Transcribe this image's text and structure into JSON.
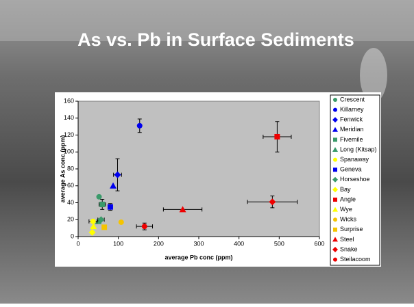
{
  "title": "As vs. Pb in Surface Sediments",
  "chart_data": {
    "type": "scatter",
    "x_label": "average Pb conc (ppm)",
    "y_label": "average As conc (ppm)",
    "xlim": [
      0,
      600
    ],
    "xticks": [
      0,
      100,
      200,
      300,
      400,
      500,
      600
    ],
    "ylim": [
      0,
      160
    ],
    "yticks": [
      0,
      20,
      40,
      60,
      80,
      100,
      120,
      140,
      160
    ],
    "plot_background": "#c0c0c0",
    "series": [
      {
        "name": "Crescent",
        "color": "#3a9a6a",
        "marker": "circle",
        "x": [
          52
        ],
        "values": [
          47
        ]
      },
      {
        "name": "Killarney",
        "color": "#0000ee",
        "marker": "circle",
        "x": [
          153
        ],
        "values": [
          131
        ],
        "yerr": [
          8
        ]
      },
      {
        "name": "Fenwick",
        "color": "#0000ee",
        "marker": "diamond",
        "x": [
          98
        ],
        "values": [
          73
        ],
        "xerr": [
          10
        ],
        "yerr": [
          19
        ]
      },
      {
        "name": "Meridian",
        "color": "#0000ee",
        "marker": "triangle",
        "x": [
          87
        ],
        "values": [
          60
        ]
      },
      {
        "name": "Fivemile",
        "color": "#3a9a6a",
        "marker": "square",
        "x": [
          60
        ],
        "values": [
          38
        ],
        "xerr": [
          8
        ],
        "yerr": [
          6
        ]
      },
      {
        "name": "Long (Kitsap)",
        "color": "#3a9a6a",
        "marker": "triangle",
        "x": [
          50
        ],
        "values": [
          18
        ]
      },
      {
        "name": "Spanaway",
        "color": "#ffff00",
        "marker": "circle",
        "x": [
          37
        ],
        "values": [
          18
        ],
        "xerr": [
          10
        ]
      },
      {
        "name": "Geneva",
        "color": "#0000ee",
        "marker": "square",
        "x": [
          80
        ],
        "values": [
          35
        ],
        "yerr": [
          4
        ]
      },
      {
        "name": "Horseshoe",
        "color": "#3a9a6a",
        "marker": "diamond",
        "x": [
          57
        ],
        "values": [
          20
        ],
        "xerr": [
          8
        ]
      },
      {
        "name": "Bay",
        "color": "#ffff00",
        "marker": "diamond",
        "x": [
          35
        ],
        "values": [
          5
        ]
      },
      {
        "name": "Angle",
        "color": "#ee0000",
        "marker": "square",
        "x": [
          495
        ],
        "values": [
          118
        ],
        "xerr": [
          35
        ],
        "yerr": [
          18
        ]
      },
      {
        "name": "Wye",
        "color": "#ffff00",
        "marker": "triangle",
        "x": [
          38
        ],
        "values": [
          12
        ]
      },
      {
        "name": "Wicks",
        "color": "#f5c400",
        "marker": "circle",
        "x": [
          107
        ],
        "values": [
          17
        ]
      },
      {
        "name": "Surprise",
        "color": "#f5c400",
        "marker": "square",
        "x": [
          65
        ],
        "values": [
          11
        ]
      },
      {
        "name": "Steel",
        "color": "#ee0000",
        "marker": "triangle",
        "x": [
          260
        ],
        "values": [
          32
        ],
        "xerr": [
          48
        ]
      },
      {
        "name": "Snake",
        "color": "#ee0000",
        "marker": "diamond",
        "x": [
          483
        ],
        "values": [
          41
        ],
        "xerr": [
          62
        ],
        "yerr": [
          7
        ]
      },
      {
        "name": "Steilacoom",
        "color": "#ee0000",
        "marker": "circle",
        "x": [
          165
        ],
        "values": [
          12
        ],
        "xerr": [
          20
        ],
        "yerr": [
          4
        ]
      }
    ]
  }
}
